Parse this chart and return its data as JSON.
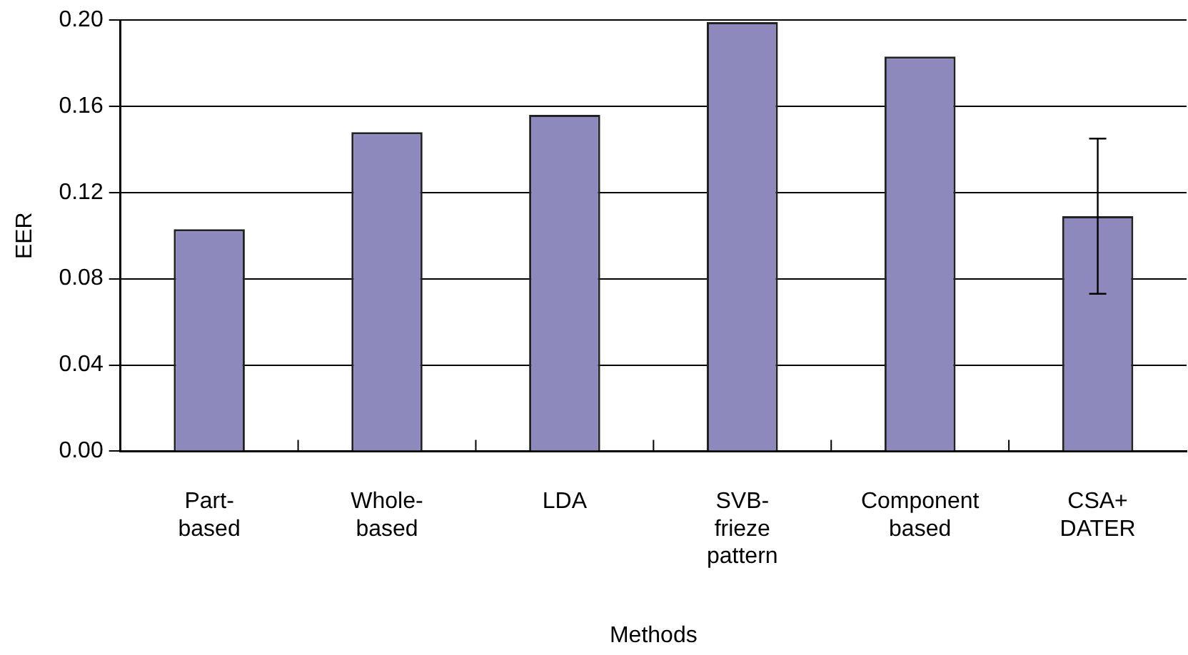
{
  "chart_data": {
    "type": "bar",
    "xlabel": "Methods",
    "ylabel": "EER",
    "categories": [
      "Part-based",
      "Whole-based",
      "LDA",
      "SVB-frieze pattern",
      "Component based",
      "CSA+DATER"
    ],
    "values": [
      0.103,
      0.148,
      0.156,
      0.199,
      0.183,
      0.109
    ],
    "errors": [
      null,
      null,
      null,
      null,
      null,
      [
        0.073,
        0.145
      ]
    ],
    "color": "#8d89bd",
    "ylim": [
      0,
      0.2
    ],
    "yticks": [
      {
        "value": 0,
        "label": "0.00"
      },
      {
        "value": 0.04,
        "label": "0.04"
      },
      {
        "value": 0.08,
        "label": "0.08"
      },
      {
        "value": 0.12,
        "label": "0.12"
      },
      {
        "value": 0.16,
        "label": "0.16"
      },
      {
        "value": 0.2,
        "label": "0.20"
      }
    ],
    "grid": "y",
    "legend": false
  }
}
